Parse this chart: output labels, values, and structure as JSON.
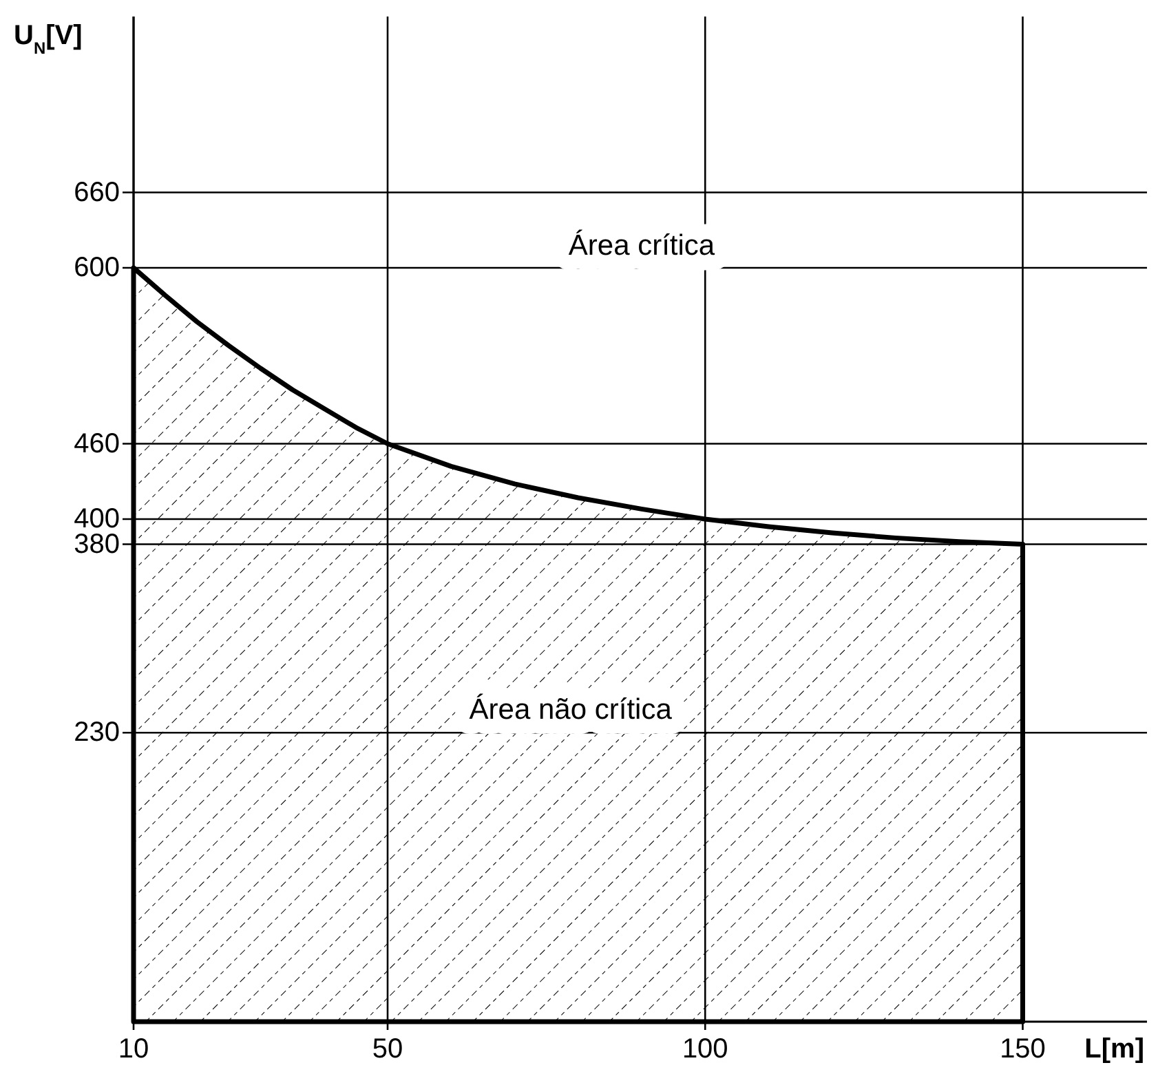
{
  "chart_data": {
    "type": "area",
    "xlabel": "L[m]",
    "ylabel": "U$_{N}$[V]",
    "x": [
      10,
      15,
      20,
      25,
      30,
      35,
      40,
      45,
      50,
      60,
      70,
      80,
      90,
      100,
      110,
      120,
      130,
      140,
      150
    ],
    "series": [
      {
        "color": "#000000",
        "values": [
          600,
          578,
          557,
          538,
          520,
          503,
          488,
          473,
          460,
          442,
          428,
          417,
          408,
          400,
          394,
          389,
          385,
          382,
          380
        ]
      }
    ],
    "xlim": [
      10,
      170
    ],
    "ylim": [
      0,
      800
    ],
    "xticks": [
      10,
      50,
      100,
      150
    ],
    "yticks": [
      230,
      380,
      400,
      460,
      600,
      660
    ],
    "grid": true,
    "annotations": [
      "Área crítica",
      "Área não crítica"
    ]
  }
}
